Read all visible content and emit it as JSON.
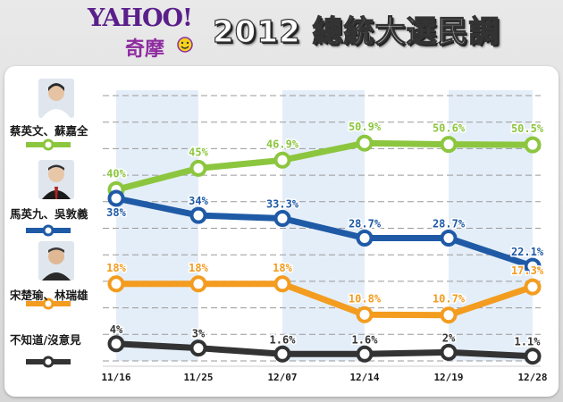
{
  "header": {
    "brand_word": "YAHOO!",
    "brand_sub": "奇摩",
    "title": "2012 總統大選民調"
  },
  "chart_data": {
    "type": "line",
    "x": [
      "11/16",
      "11/25",
      "12/07",
      "12/14",
      "12/19",
      "12/28"
    ],
    "ylim": [
      0,
      62
    ],
    "grid": "horizontal dashed",
    "legend_placement": "left",
    "series": [
      {
        "name": "蔡英文、蘇嘉全",
        "color": "#8cc63f",
        "values": [
          40,
          45,
          46.9,
          50.9,
          50.6,
          50.5
        ],
        "labels": [
          "40%",
          "45%",
          "46.9%",
          "50.9%",
          "50.6%",
          "50.5%"
        ]
      },
      {
        "name": "馬英九、吳敦義",
        "color": "#1f5aa6",
        "values": [
          38,
          34,
          33.3,
          28.7,
          28.7,
          22.1
        ],
        "labels": [
          "38%",
          "34%",
          "33.3%",
          "28.7%",
          "28.7%",
          "22.1%"
        ]
      },
      {
        "name": "宋楚瑜、林瑞雄",
        "color": "#f39c1f",
        "values": [
          18,
          18,
          18,
          10.8,
          10.7,
          17.3
        ],
        "labels": [
          "18%",
          "18%",
          "18%",
          "10.8%",
          "10.7%",
          "17.3%"
        ]
      },
      {
        "name": "不知道/沒意見",
        "color": "#333333",
        "values": [
          4,
          3,
          1.6,
          1.6,
          2,
          1.1
        ],
        "labels": [
          "4%",
          "3%",
          "1.6%",
          "1.6%",
          "2%",
          "1.1%"
        ]
      }
    ]
  }
}
